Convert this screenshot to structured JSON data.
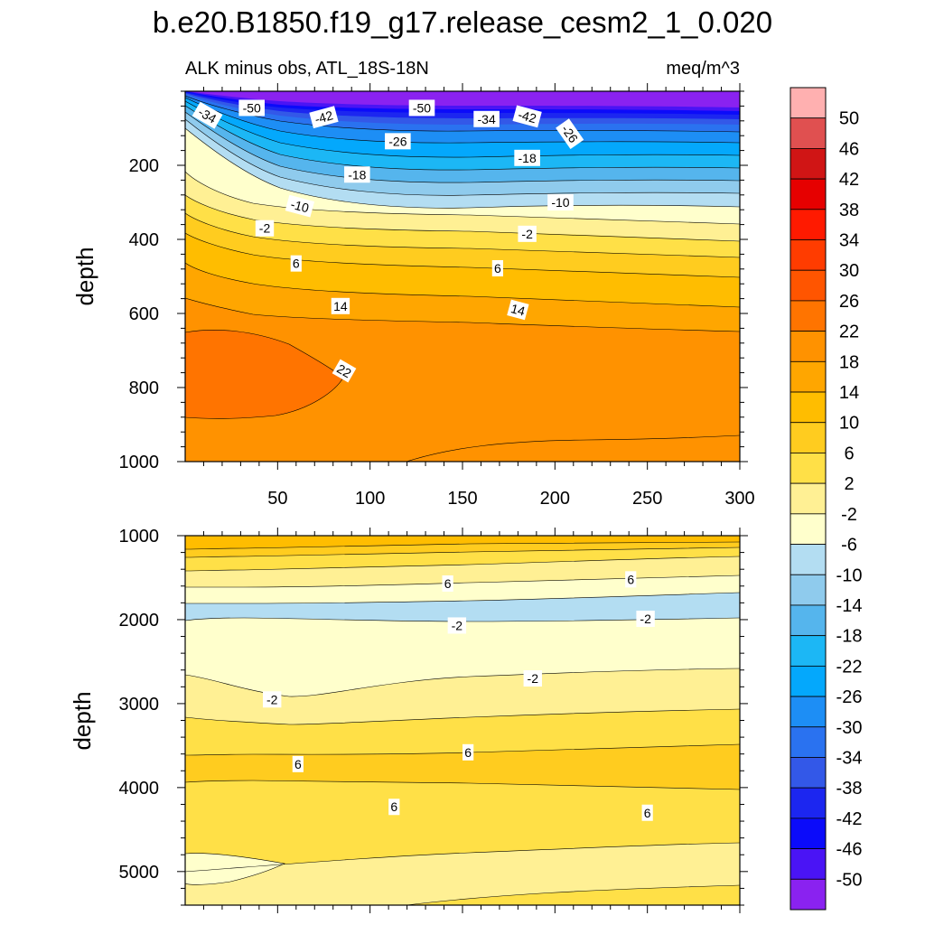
{
  "figure_title": "b.e20.B1850.f19_g17.release_cesm2_1_0.020",
  "chart_data": [
    {
      "type": "heatmap",
      "panel": "upper",
      "title_left": "ALK minus obs, ATL_18S-18N",
      "title_right": "meq/m^3",
      "xlabel": "",
      "ylabel": "depth",
      "xlim": [
        0,
        300
      ],
      "ylim": [
        0,
        1000
      ],
      "y_inverted": true,
      "x_ticks": [
        50,
        100,
        150,
        200,
        250,
        300
      ],
      "y_ticks": [
        200,
        400,
        600,
        800,
        1000
      ],
      "contour_labels": [
        {
          "text": "-50",
          "x": 36,
          "y": 45
        },
        {
          "text": "-34",
          "x": 12,
          "y": 65,
          "rot": 30
        },
        {
          "text": "-42",
          "x": 75,
          "y": 70,
          "rot": -15
        },
        {
          "text": "-50",
          "x": 128,
          "y": 45
        },
        {
          "text": "-34",
          "x": 163,
          "y": 75
        },
        {
          "text": "-42",
          "x": 185,
          "y": 68,
          "rot": 15
        },
        {
          "text": "-26",
          "x": 208,
          "y": 115,
          "rot": 55
        },
        {
          "text": "-26",
          "x": 115,
          "y": 135
        },
        {
          "text": "-18",
          "x": 185,
          "y": 180
        },
        {
          "text": "-18",
          "x": 93,
          "y": 225
        },
        {
          "text": "-10",
          "x": 62,
          "y": 310,
          "rot": 15
        },
        {
          "text": "-10",
          "x": 203,
          "y": 300
        },
        {
          "text": "-2",
          "x": 43,
          "y": 370
        },
        {
          "text": "-2",
          "x": 185,
          "y": 385
        },
        {
          "text": "6",
          "x": 60,
          "y": 465
        },
        {
          "text": "6",
          "x": 169,
          "y": 478
        },
        {
          "text": "14",
          "x": 84,
          "y": 580
        },
        {
          "text": "14",
          "x": 180,
          "y": 590,
          "rot": 15
        },
        {
          "text": "22",
          "x": 86,
          "y": 755,
          "rot": 30
        }
      ]
    },
    {
      "type": "heatmap",
      "panel": "lower",
      "xlabel": "",
      "ylabel": "depth",
      "xlim": [
        0,
        300
      ],
      "ylim": [
        1000,
        5400
      ],
      "y_inverted": true,
      "y_ticks": [
        1000,
        2000,
        3000,
        4000,
        5000
      ],
      "contour_labels": [
        {
          "text": "6",
          "x": 142,
          "y": 1570
        },
        {
          "text": "6",
          "x": 241,
          "y": 1520
        },
        {
          "text": "-2",
          "x": 147,
          "y": 2070
        },
        {
          "text": "-2",
          "x": 249,
          "y": 1990
        },
        {
          "text": "-2",
          "x": 188,
          "y": 2700
        },
        {
          "text": "-2",
          "x": 47,
          "y": 2950
        },
        {
          "text": "6",
          "x": 61,
          "y": 3720
        },
        {
          "text": "6",
          "x": 153,
          "y": 3580
        },
        {
          "text": "6",
          "x": 113,
          "y": 4230
        },
        {
          "text": "6",
          "x": 250,
          "y": 4300
        }
      ]
    }
  ],
  "colorbar": {
    "labels": [
      "50",
      "46",
      "42",
      "38",
      "34",
      "30",
      "26",
      "22",
      "18",
      "14",
      "10",
      "6",
      "2",
      "-2",
      "-6",
      "-10",
      "-14",
      "-18",
      "-22",
      "-26",
      "-30",
      "-34",
      "-38",
      "-42",
      "-46",
      "-50"
    ],
    "colors": [
      "#ffb0b0",
      "#e05050",
      "#d01515",
      "#e60000",
      "#ff1a00",
      "#ff3c00",
      "#ff5500",
      "#ff7400",
      "#ff9200",
      "#ffa600",
      "#ffbd00",
      "#ffcc1f",
      "#ffe047",
      "#fff094",
      "#ffffcc",
      "#b3ddf2",
      "#8fcbed",
      "#55b5ed",
      "#1cb7f5",
      "#04a8fc",
      "#1d8ef5",
      "#2a72f0",
      "#3358e8",
      "#1c26f0",
      "#0b0bfa",
      "#4a14f5",
      "#8a22f0"
    ]
  }
}
